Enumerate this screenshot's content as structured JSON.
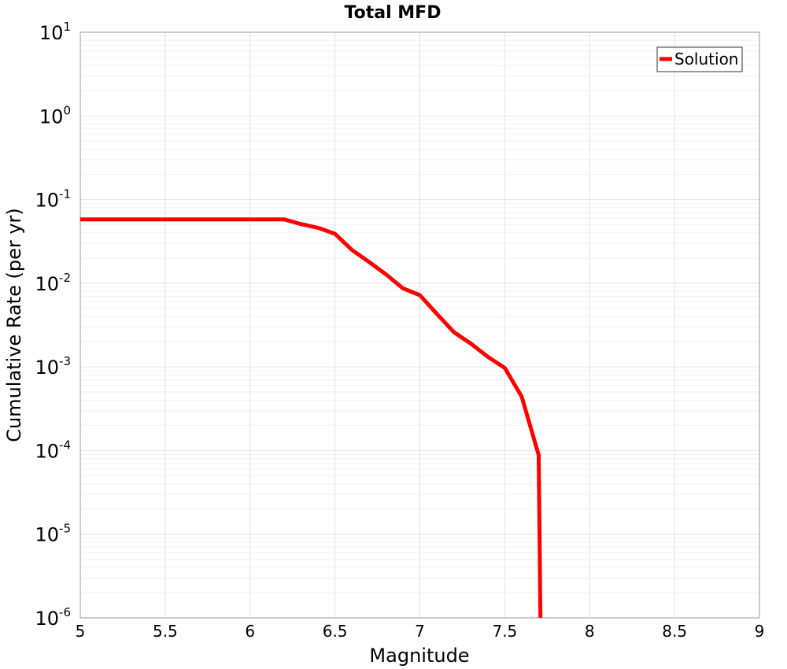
{
  "chart_data": {
    "type": "line",
    "title": "Total MFD",
    "xlabel": "Magnitude",
    "ylabel": "Cumulative Rate (per yr)",
    "xscale": "linear",
    "yscale": "log",
    "xlim": [
      5,
      9
    ],
    "ylim": [
      1e-06,
      10
    ],
    "xticks": [
      5,
      5.5,
      6,
      6.5,
      7,
      7.5,
      8,
      8.5,
      9
    ],
    "xtick_labels": [
      "5",
      "5.5",
      "6",
      "6.5",
      "7",
      "7.5",
      "8",
      "8.5",
      "9"
    ],
    "yticks": [
      {
        "value": 10,
        "base": "10",
        "exp": "1"
      },
      {
        "value": 1,
        "base": "10",
        "exp": "0"
      },
      {
        "value": 0.1,
        "base": "10",
        "exp": "-1"
      },
      {
        "value": 0.01,
        "base": "10",
        "exp": "-2"
      },
      {
        "value": 0.001,
        "base": "10",
        "exp": "-3"
      },
      {
        "value": 0.0001,
        "base": "10",
        "exp": "-4"
      },
      {
        "value": 1e-05,
        "base": "10",
        "exp": "-5"
      },
      {
        "value": 1e-06,
        "base": "10",
        "exp": "-6"
      }
    ],
    "grid": true,
    "legend_position": "top-right",
    "series": [
      {
        "name": "Solution",
        "color": "#ff0000",
        "x": [
          5.0,
          5.5,
          6.0,
          6.2,
          6.3,
          6.4,
          6.5,
          6.6,
          6.7,
          6.8,
          6.9,
          7.0,
          7.1,
          7.2,
          7.3,
          7.4,
          7.5,
          7.6,
          7.7,
          7.71
        ],
        "y": [
          0.058,
          0.058,
          0.058,
          0.058,
          0.051,
          0.046,
          0.039,
          0.025,
          0.018,
          0.0128,
          0.0087,
          0.0072,
          0.0043,
          0.0026,
          0.0019,
          0.00132,
          0.00097,
          0.00044,
          8.8e-05,
          1e-06
        ]
      }
    ]
  }
}
